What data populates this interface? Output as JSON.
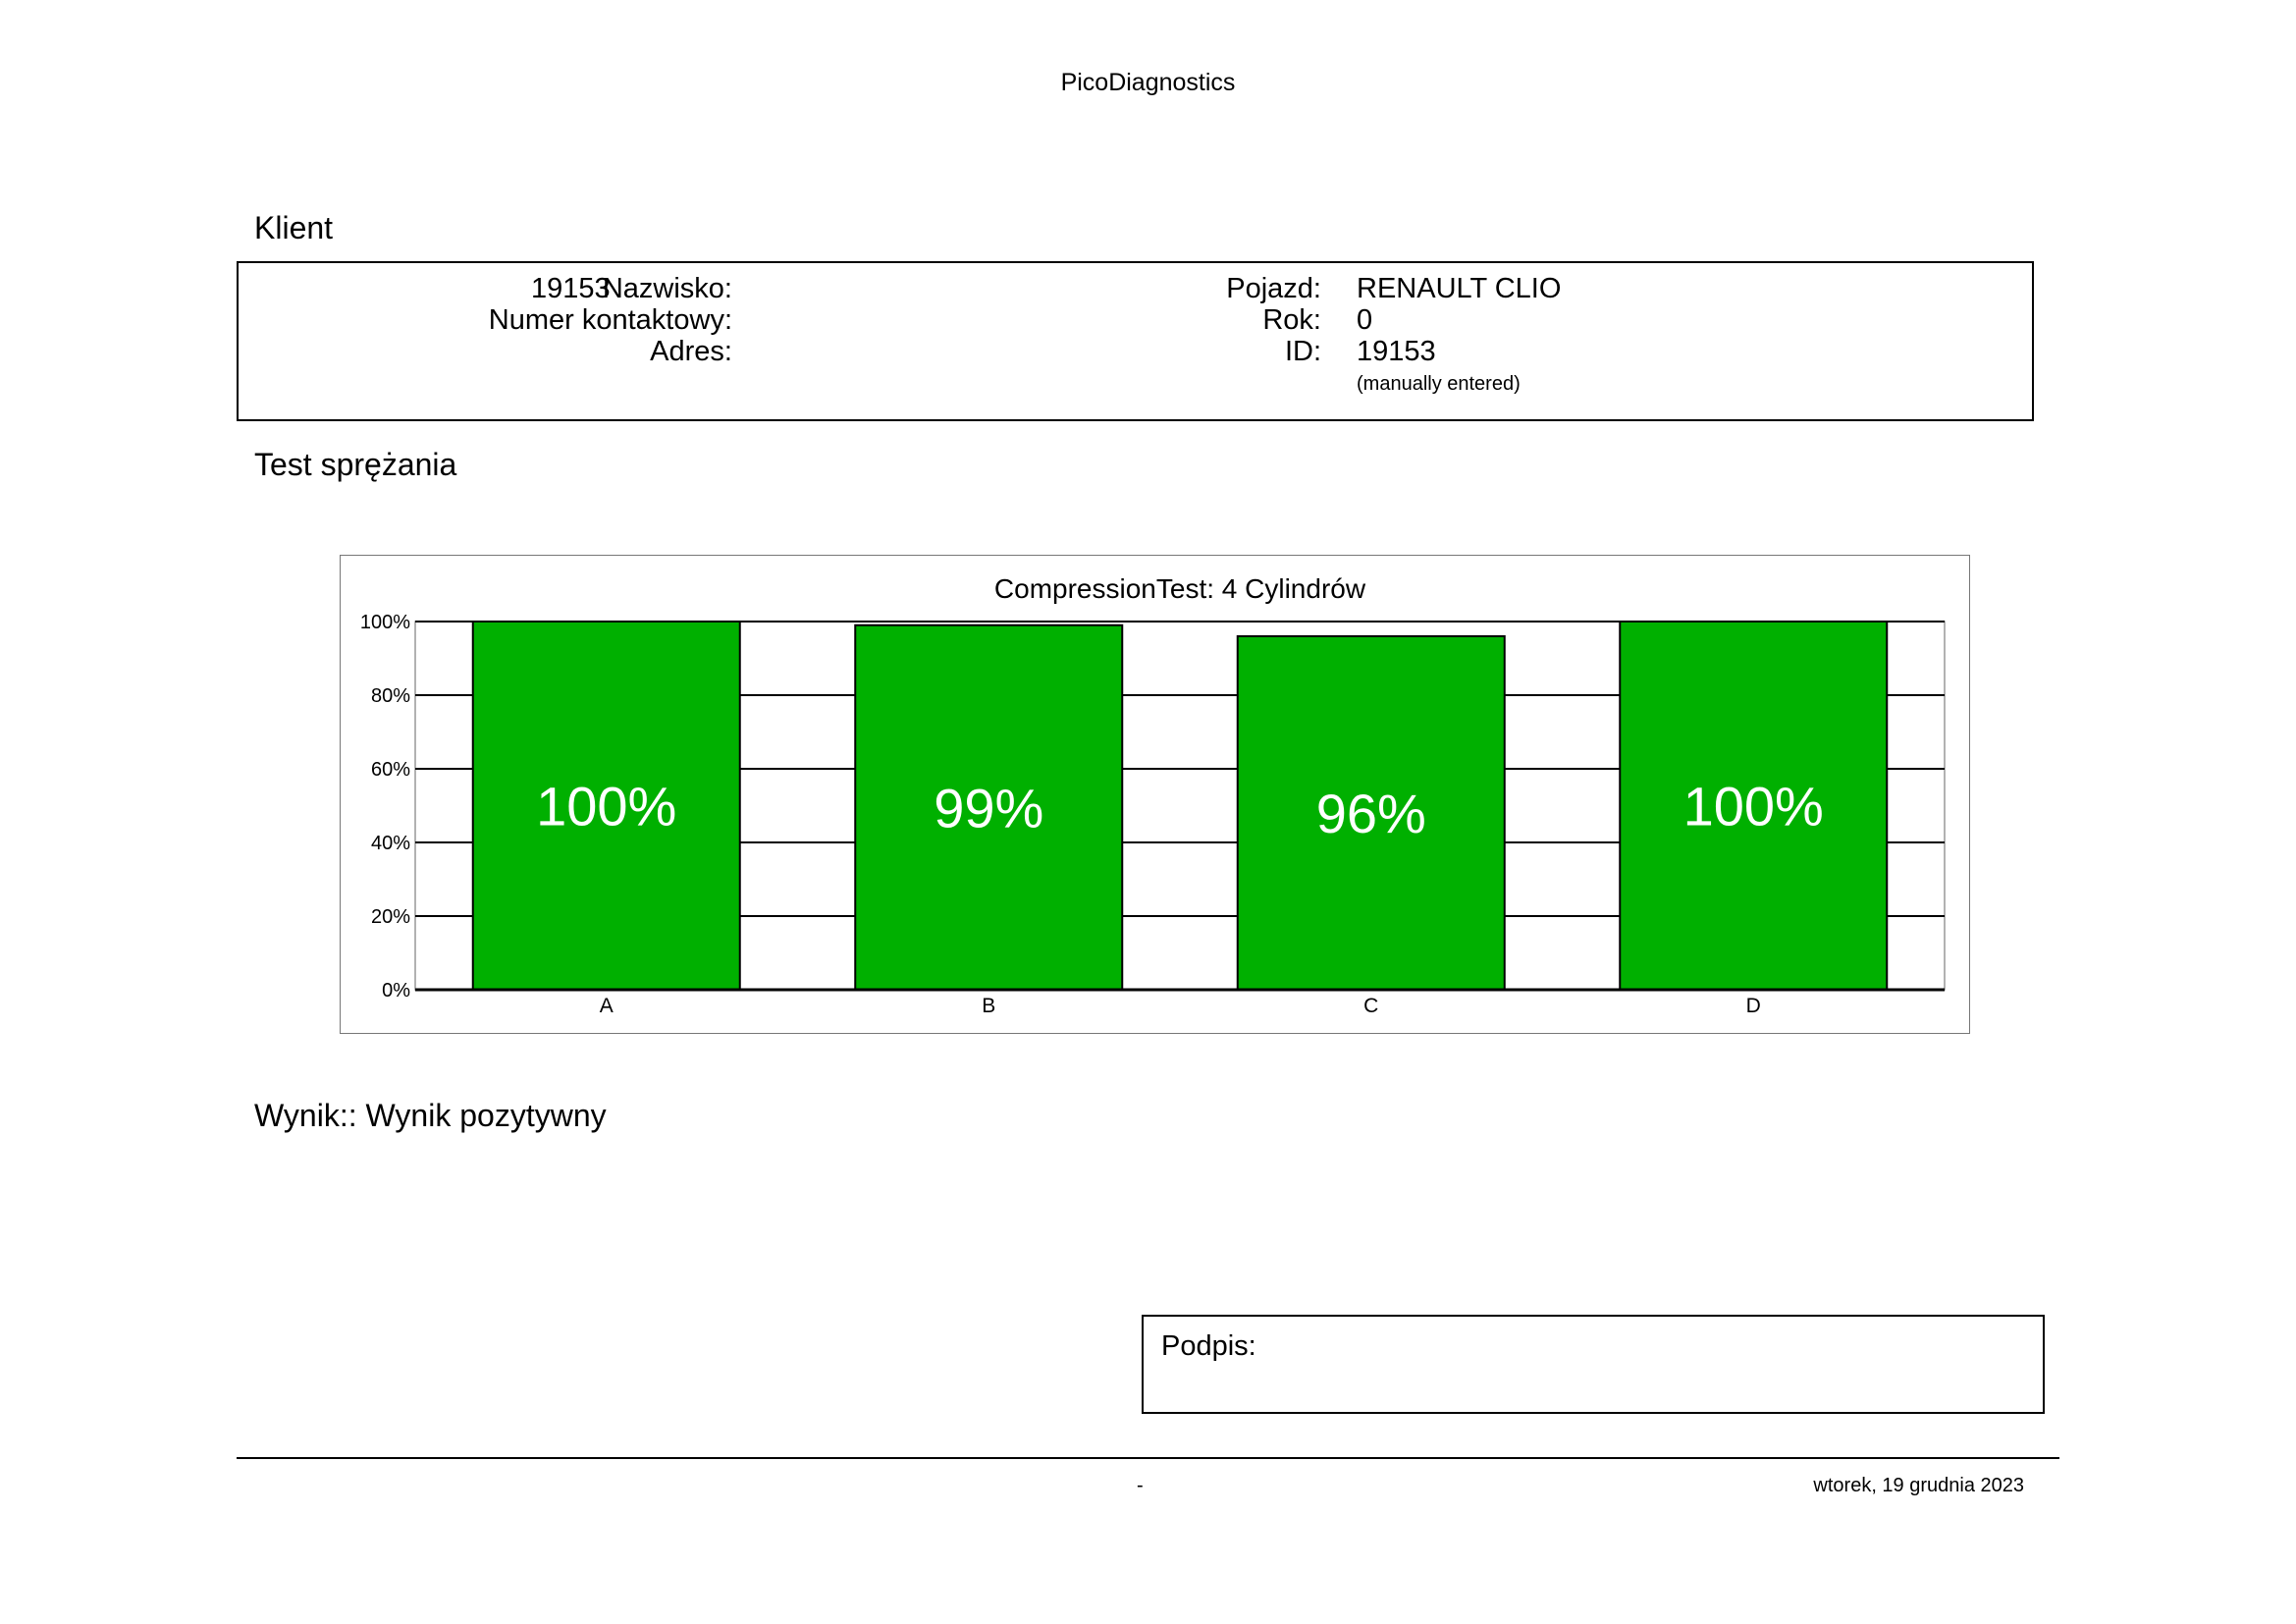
{
  "report": {
    "app_title": "PicoDiagnostics",
    "client_section_title": "Klient",
    "test_section_title": "Test sprężania",
    "result_text": "Wynik:: Wynik pozytywny",
    "signature_label": "Podpis:",
    "footer_center": "-",
    "footer_date": "wtorek, 19 grudnia 2023"
  },
  "client": {
    "left": [
      {
        "label": "Nazwisko:",
        "value": "19153"
      },
      {
        "label": "Numer kontaktowy:",
        "value": ""
      },
      {
        "label": "Adres:",
        "value": ""
      }
    ],
    "right": [
      {
        "label": "Pojazd:",
        "value": "RENAULT CLIO"
      },
      {
        "label": "Rok:",
        "value": "0"
      },
      {
        "label": "ID:",
        "value": "19153"
      }
    ],
    "id_note": "(manually entered)"
  },
  "chart_data": {
    "type": "bar",
    "title": "CompressionTest: 4 Cylindrów",
    "categories": [
      "A",
      "B",
      "C",
      "D"
    ],
    "values": [
      100,
      99,
      96,
      100
    ],
    "value_labels": [
      "100%",
      "99%",
      "96%",
      "100%"
    ],
    "ylim": [
      0,
      100
    ],
    "y_ticks": [
      0,
      20,
      40,
      60,
      80,
      100
    ],
    "y_tick_labels": [
      "0%",
      "20%",
      "40%",
      "60%",
      "80%",
      "100%"
    ],
    "xlabel": "",
    "ylabel": "",
    "bar_color": "#00b000",
    "grid": true,
    "legend": "none"
  }
}
